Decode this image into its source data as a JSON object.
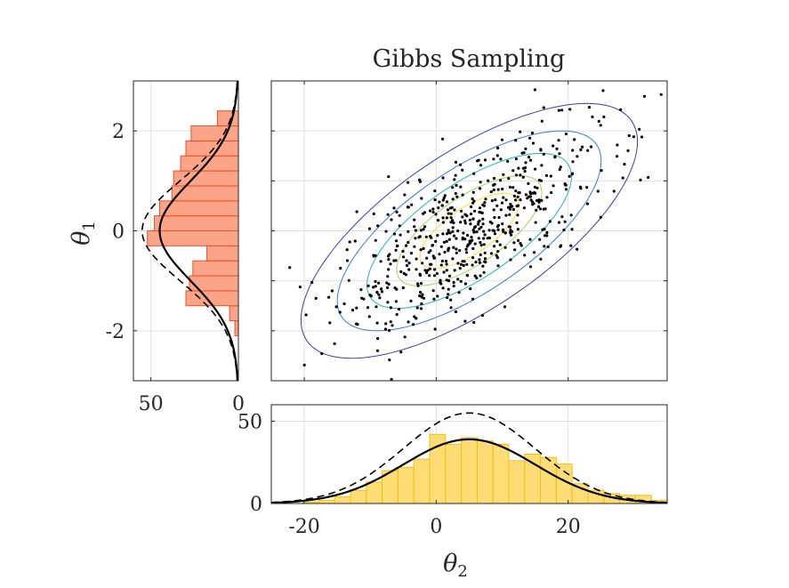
{
  "figure": {
    "title": "Gibbs Sampling",
    "xlabel_main": "θ",
    "xlabel_sub": "2",
    "ylabel_main": "θ",
    "ylabel_sub": "1"
  },
  "colors": {
    "hist_theta1_fill": "#fca487",
    "hist_theta1_edge": "#e8502a",
    "hist_theta2_fill": "#fedd76",
    "hist_theta2_edge": "#f2c00f",
    "contour_colors": [
      "#3b3fa8",
      "#3f76d6",
      "#22b5b0",
      "#a6d35a",
      "#f5e12d"
    ],
    "points": "#000000",
    "curves": "#000000"
  },
  "chart_data": [
    {
      "name": "scatter-theta2-theta1",
      "type": "scatter",
      "xlim": [
        -25,
        35
      ],
      "ylim": [
        -3,
        3
      ],
      "xticks": [
        -20,
        0,
        20
      ],
      "yticks": [
        -2,
        0,
        2
      ],
      "grid": true,
      "mean": [
        5,
        0
      ],
      "sd": [
        10,
        1
      ],
      "correlation": 0.7,
      "contour_mahalanobis_levels": [
        2.55,
        2.0,
        1.55,
        1.1,
        0.75
      ],
      "sample_count": 600
    },
    {
      "name": "marginal-theta1-histogram",
      "type": "bar",
      "orientation": "horizontal",
      "bin_edges": [
        -3.0,
        -2.7,
        -2.4,
        -2.1,
        -1.8,
        -1.5,
        -1.2,
        -0.9,
        -0.6,
        -0.3,
        0.0,
        0.3,
        0.6,
        0.9,
        1.2,
        1.5,
        1.8,
        2.1,
        2.4,
        2.7,
        3.0
      ],
      "counts": [
        0,
        0,
        0,
        2,
        5,
        30,
        28,
        26,
        18,
        52,
        48,
        45,
        38,
        37,
        33,
        30,
        27,
        12,
        0,
        0
      ],
      "xlim_reversed": [
        0,
        60
      ],
      "xticks": [
        50,
        0
      ],
      "ylim": [
        -3,
        3
      ],
      "yticks": [
        -2,
        0,
        2
      ],
      "curves": [
        {
          "style": "solid",
          "mean": 0,
          "sd": 1,
          "peak": 45
        },
        {
          "style": "dashed",
          "mean": 0,
          "sd": 1,
          "peak": 55
        }
      ]
    },
    {
      "name": "marginal-theta2-histogram",
      "type": "bar",
      "bin_edges": [
        -25,
        -22.6,
        -20.2,
        -17.8,
        -15.4,
        -13,
        -10.6,
        -8.2,
        -5.8,
        -3.4,
        -1,
        1.4,
        3.8,
        6.2,
        8.6,
        11,
        13.4,
        15.8,
        18.2,
        20.6,
        23,
        25.4,
        27.8,
        30.2,
        32.6,
        35
      ],
      "counts": [
        0,
        0,
        1,
        2,
        4,
        8,
        13,
        20,
        22,
        27,
        42,
        36,
        40,
        38,
        36,
        26,
        30,
        28,
        24,
        12,
        8,
        6,
        5,
        5,
        2
      ],
      "xlim": [
        -25,
        35
      ],
      "ylim": [
        0,
        60
      ],
      "xticks": [
        -20,
        0,
        20
      ],
      "yticks": [
        0,
        50
      ],
      "curves": [
        {
          "style": "solid",
          "mean": 5,
          "sd": 10,
          "peak": 39
        },
        {
          "style": "dashed",
          "mean": 5,
          "sd": 10,
          "peak": 55
        }
      ]
    }
  ]
}
